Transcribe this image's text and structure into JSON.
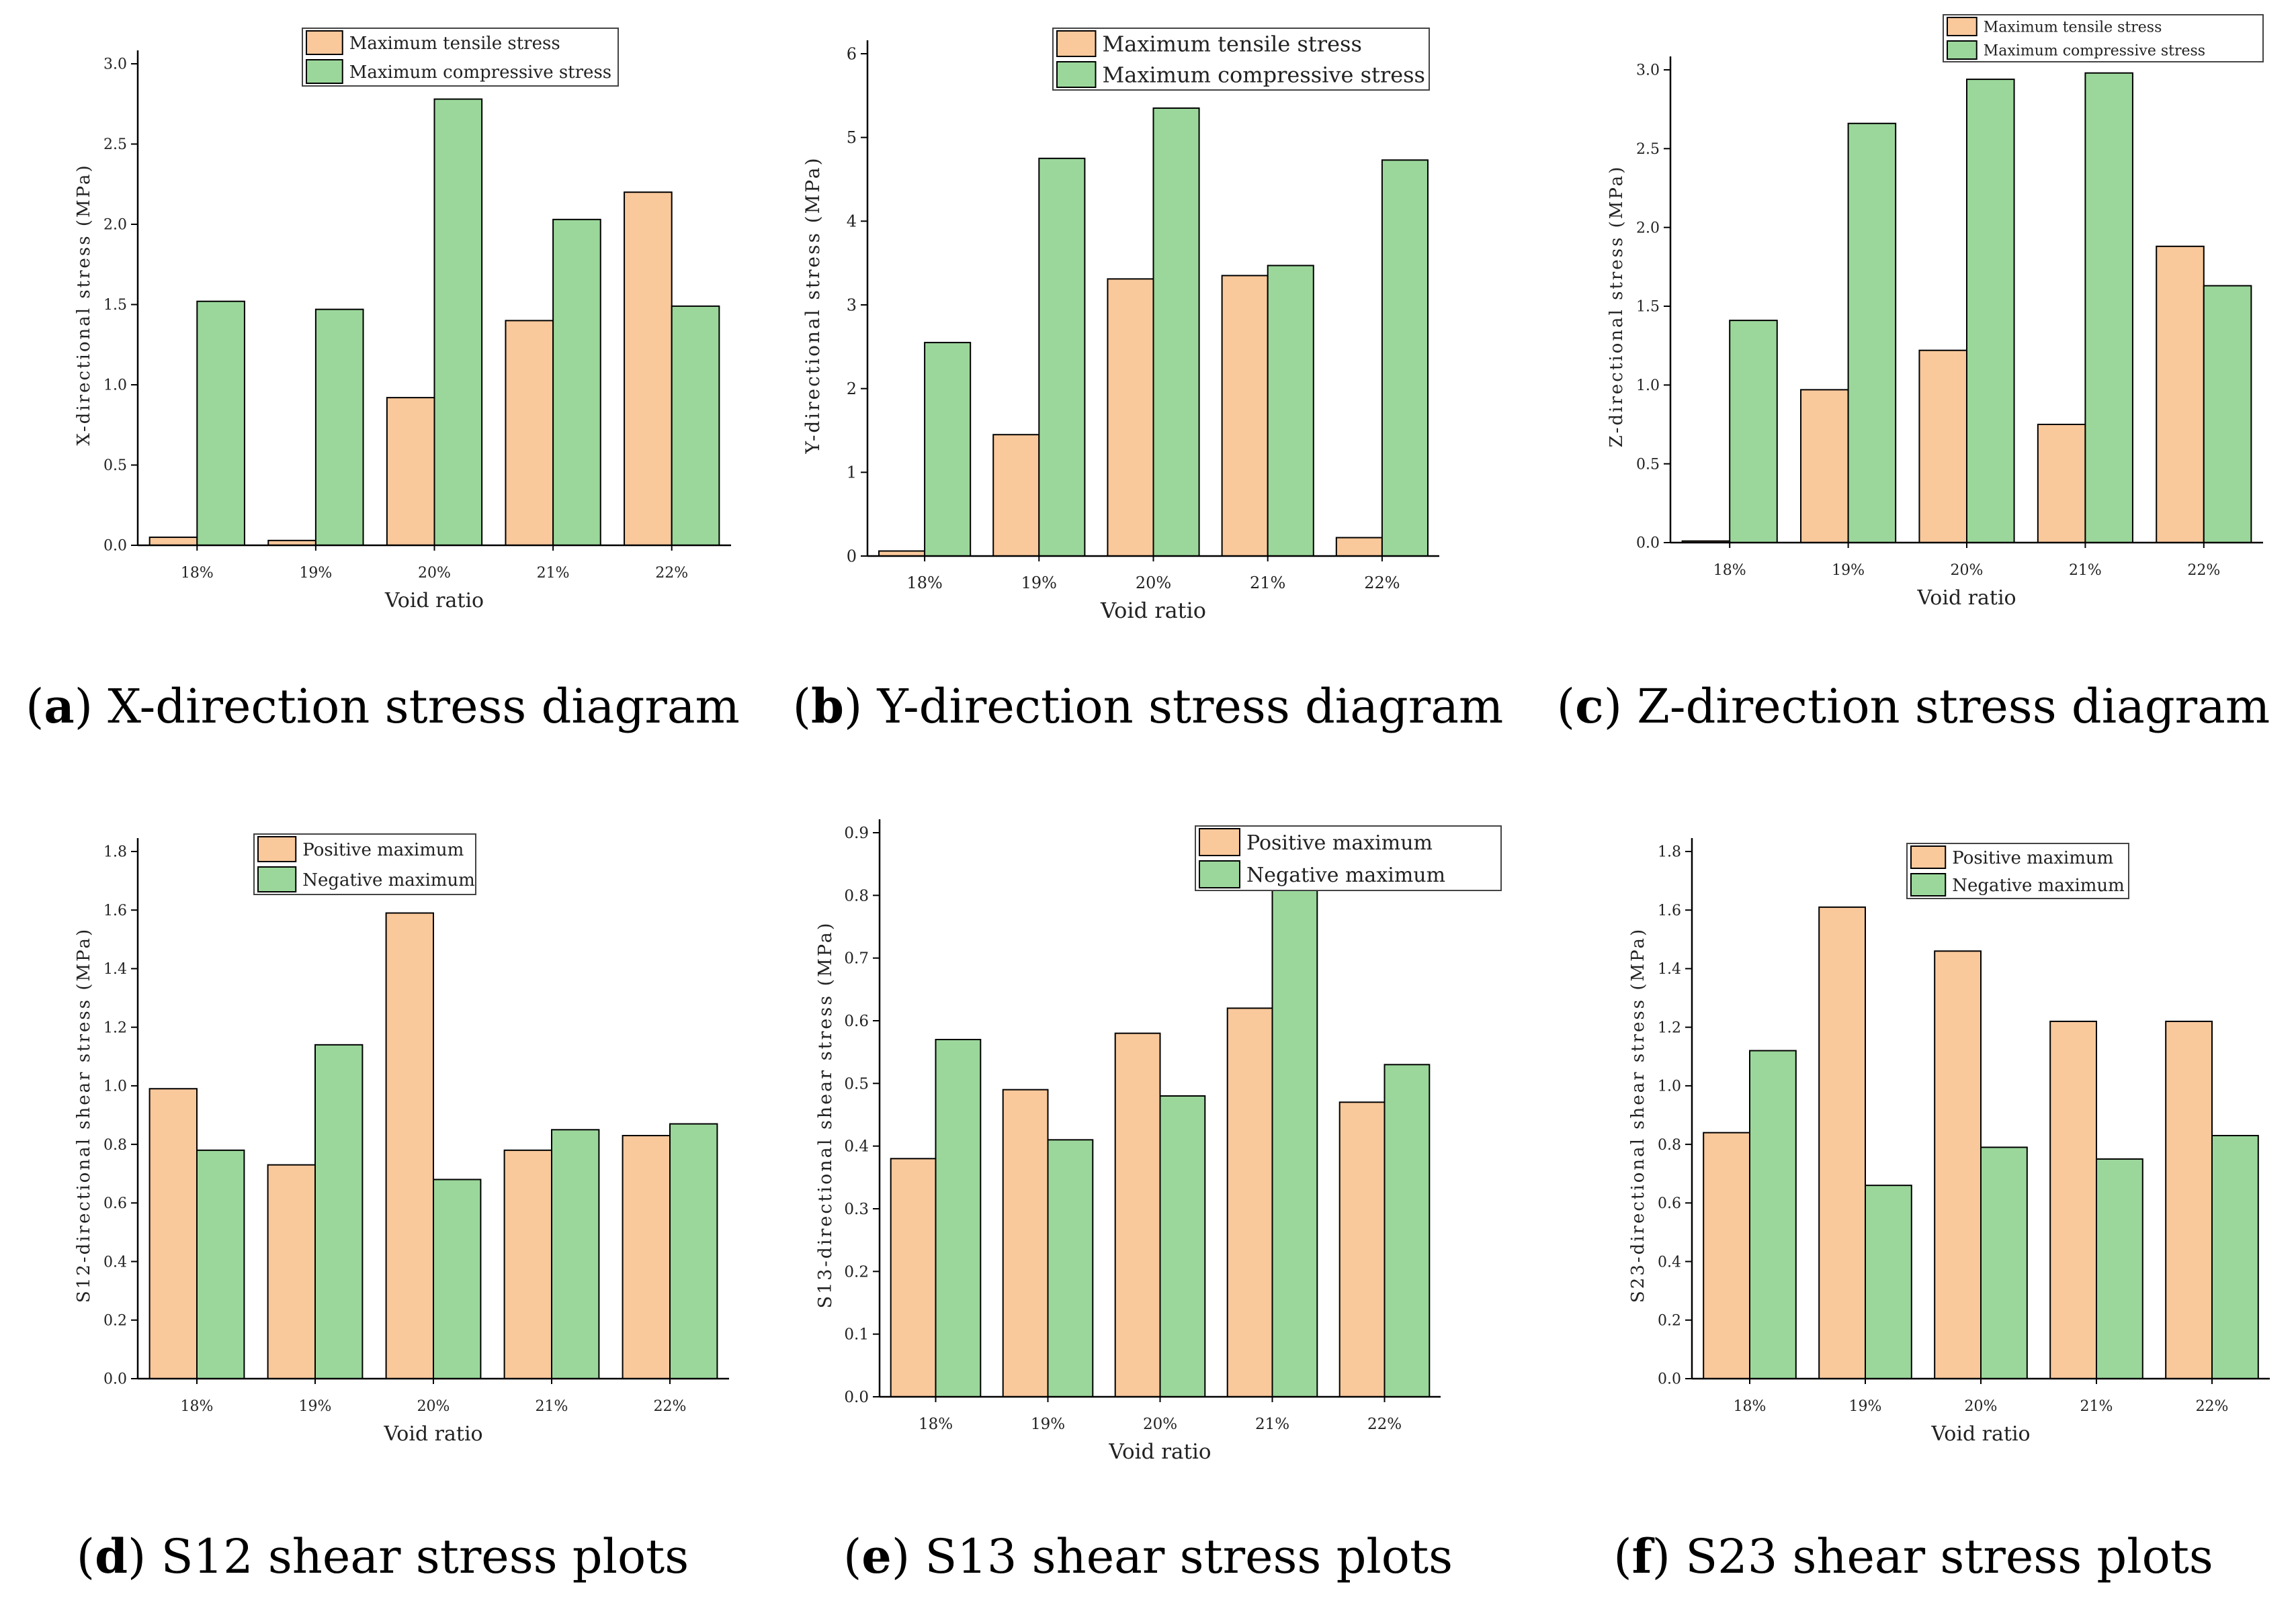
{
  "colors": {
    "tensile": "#f9c89b",
    "compressive": "#9bd79b",
    "axis": "#000000"
  },
  "captions": [
    {
      "letter": "a",
      "text": " X-direction stress diagram"
    },
    {
      "letter": "b",
      "text": " Y-direction stress diagram"
    },
    {
      "letter": "c",
      "text": " Z-direction stress diagram"
    },
    {
      "letter": "d",
      "text": " S12 shear stress plots"
    },
    {
      "letter": "e",
      "text": " S13 shear stress plots"
    },
    {
      "letter": "f",
      "text": " S23 shear stress plots"
    }
  ],
  "chart_data": [
    {
      "type": "bar",
      "xlabel": "Void ratio",
      "ylabel": "X-directional stress (MPa)",
      "categories": [
        "18%",
        "19%",
        "20%",
        "21%",
        "22%"
      ],
      "ylim": [
        0,
        3.0
      ],
      "yticks": [
        "0.0",
        "0.5",
        "1.0",
        "1.5",
        "2.0",
        "2.5",
        "3.0"
      ],
      "legend_position": "top-right",
      "series": [
        {
          "name": "Maximum tensile stress",
          "values": [
            0.05,
            0.03,
            0.92,
            1.4,
            2.2
          ]
        },
        {
          "name": "Maximum compressive stress",
          "values": [
            1.52,
            1.47,
            2.78,
            2.03,
            1.49
          ]
        }
      ]
    },
    {
      "type": "bar",
      "xlabel": "Void ratio",
      "ylabel": "Y-directional stress (MPa)",
      "categories": [
        "18%",
        "19%",
        "20%",
        "21%",
        "22%"
      ],
      "ylim": [
        0,
        6
      ],
      "yticks": [
        "0",
        "1",
        "2",
        "3",
        "4",
        "5",
        "6"
      ],
      "legend_position": "top-right",
      "series": [
        {
          "name": "Maximum tensile stress",
          "values": [
            0.06,
            1.45,
            3.31,
            3.35,
            0.22
          ]
        },
        {
          "name": "Maximum compressive stress",
          "values": [
            2.55,
            4.75,
            5.35,
            3.47,
            4.73
          ]
        }
      ]
    },
    {
      "type": "bar",
      "xlabel": "Void ratio",
      "ylabel": "Z-directional stress (MPa)",
      "categories": [
        "18%",
        "19%",
        "20%",
        "21%",
        "22%"
      ],
      "ylim": [
        0,
        3.0
      ],
      "yticks": [
        "0.0",
        "0.5",
        "1.0",
        "1.5",
        "2.0",
        "2.5",
        "3.0"
      ],
      "legend_position": "top-right",
      "series": [
        {
          "name": "Maximum tensile stress",
          "values": [
            0.01,
            0.97,
            1.22,
            0.75,
            1.88
          ]
        },
        {
          "name": "Maximum compressive stress",
          "values": [
            1.41,
            2.66,
            2.94,
            2.98,
            1.63
          ]
        }
      ]
    },
    {
      "type": "bar",
      "xlabel": "Void ratio",
      "ylabel": "S12-directional shear stress (MPa)",
      "categories": [
        "18%",
        "19%",
        "20%",
        "21%",
        "22%"
      ],
      "ylim": [
        0,
        1.8
      ],
      "yticks": [
        "0.0",
        "0.2",
        "0.4",
        "0.6",
        "0.8",
        "1.0",
        "1.2",
        "1.4",
        "1.6",
        "1.8"
      ],
      "legend_position": "top-right",
      "series": [
        {
          "name": "Positive maximum",
          "values": [
            0.99,
            0.73,
            1.59,
            0.78,
            0.83
          ]
        },
        {
          "name": "Negative maximum",
          "values": [
            0.78,
            1.14,
            0.68,
            0.85,
            0.87
          ]
        }
      ]
    },
    {
      "type": "bar",
      "xlabel": "Void ratio",
      "ylabel": "S13-directional shear stress (MPa)",
      "categories": [
        "18%",
        "19%",
        "20%",
        "21%",
        "22%"
      ],
      "ylim": [
        0,
        0.9
      ],
      "yticks": [
        "0.0",
        "0.1",
        "0.2",
        "0.3",
        "0.4",
        "0.5",
        "0.6",
        "0.7",
        "0.8",
        "0.9"
      ],
      "legend_position": "top-right",
      "series": [
        {
          "name": "Positive maximum",
          "values": [
            0.38,
            0.49,
            0.58,
            0.62,
            0.47
          ]
        },
        {
          "name": "Negative maximum",
          "values": [
            0.57,
            0.41,
            0.48,
            0.87,
            0.53
          ]
        }
      ]
    },
    {
      "type": "bar",
      "xlabel": "Void ratio",
      "ylabel": "S23-directional shear stress (MPa)",
      "categories": [
        "18%",
        "19%",
        "20%",
        "21%",
        "22%"
      ],
      "ylim": [
        0,
        1.8
      ],
      "yticks": [
        "0.0",
        "0.2",
        "0.4",
        "0.6",
        "0.8",
        "1.0",
        "1.2",
        "1.4",
        "1.6",
        "1.8"
      ],
      "legend_position": "top-right",
      "series": [
        {
          "name": "Positive maximum",
          "values": [
            0.84,
            1.61,
            1.46,
            1.22,
            1.22
          ]
        },
        {
          "name": "Negative maximum",
          "values": [
            1.12,
            0.66,
            0.79,
            0.75,
            0.83
          ]
        }
      ]
    }
  ]
}
